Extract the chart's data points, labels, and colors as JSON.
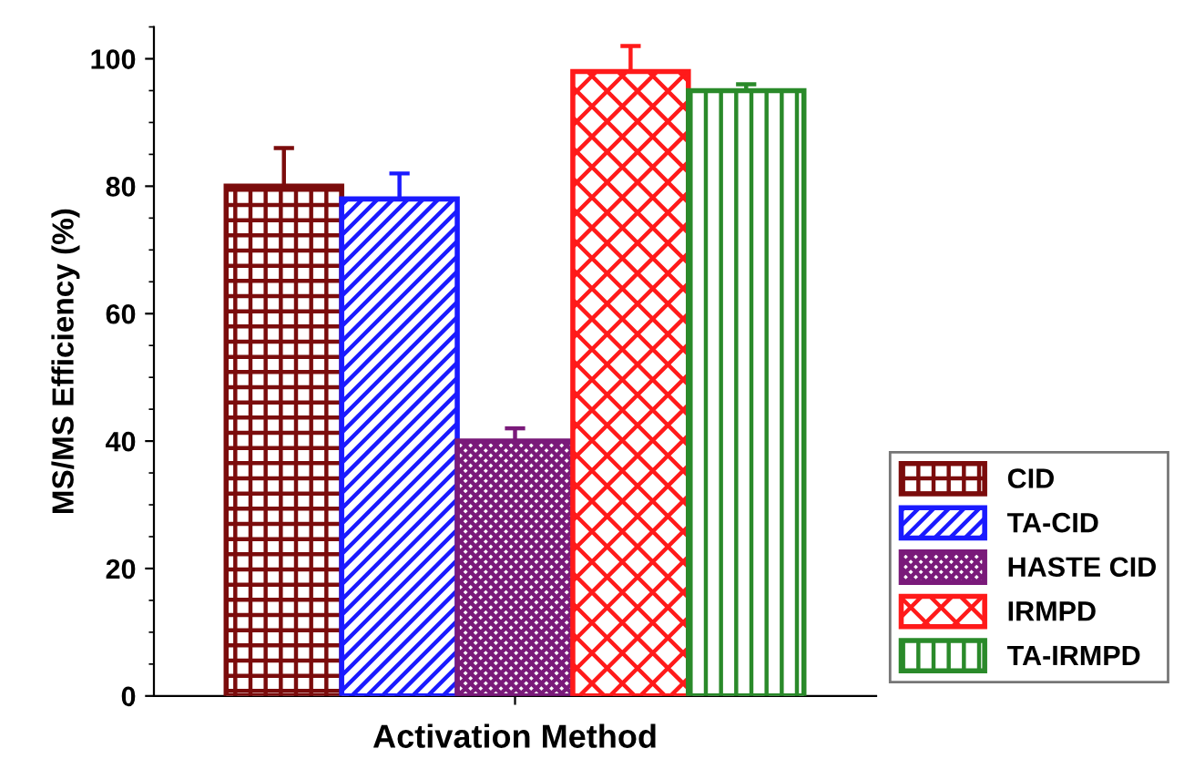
{
  "chart_data": {
    "type": "bar",
    "xlabel": "Activation Method",
    "ylabel": "MS/MS Efficiency (%)",
    "categories": [
      null
    ],
    "series": [
      {
        "name": "CID",
        "color": "#7b0c0c",
        "values": [
          80
        ],
        "errors": [
          6
        ]
      },
      {
        "name": "TA-CID",
        "color": "#1a1aff",
        "values": [
          78
        ],
        "errors": [
          4
        ]
      },
      {
        "name": "HASTE CID",
        "color": "#7a1a7a",
        "values": [
          40
        ],
        "errors": [
          2
        ]
      },
      {
        "name": "IRMPD",
        "color": "#ff1a1a",
        "values": [
          98
        ],
        "errors": [
          4
        ]
      },
      {
        "name": "TA-IRMPD",
        "color": "#2a8a2a",
        "values": [
          95
        ],
        "errors": [
          1
        ]
      }
    ],
    "ylim": [
      0,
      105
    ],
    "yticks": [
      0,
      20,
      40,
      60,
      80,
      100
    ],
    "grid": false,
    "legend": "bottom right"
  }
}
